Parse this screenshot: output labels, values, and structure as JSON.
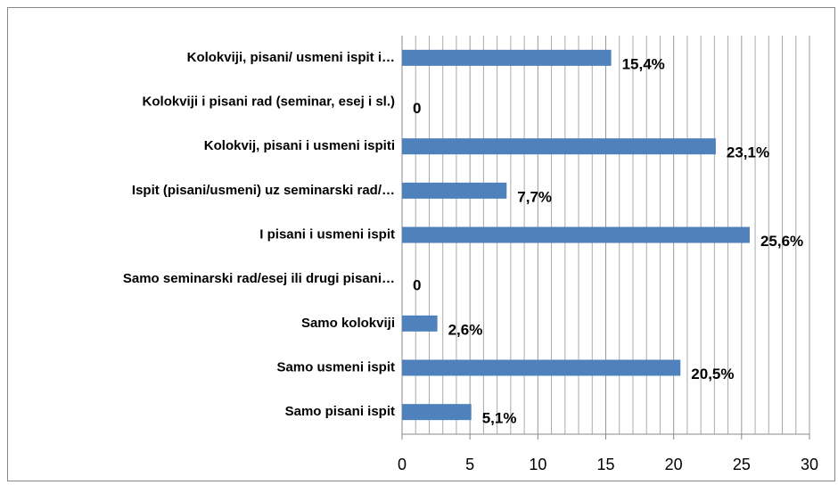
{
  "chart_data": {
    "type": "bar",
    "orientation": "horizontal",
    "categories": [
      "Kolokviji, pisani/ usmeni ispit i…",
      "Kolokviji i pisani rad (seminar, esej i sl.)",
      "Kolokvij, pisani i usmeni ispiti",
      "Ispit (pisani/usmeni) uz seminarski rad/…",
      "I pisani i usmeni ispit",
      "Samo seminarski rad/esej ili drugi pisani…",
      "Samo kolokviji",
      "Samo usmeni ispit",
      "Samo pisani ispit"
    ],
    "values": [
      15.4,
      0,
      23.1,
      7.7,
      25.6,
      0,
      2.6,
      20.5,
      5.1
    ],
    "value_labels": [
      "15,4%",
      "0",
      "23,1%",
      "7,7%",
      "25,6%",
      "0",
      "2,6%",
      "20,5%",
      "5,1%"
    ],
    "color": "#4f81bd",
    "xlim": [
      0,
      30
    ],
    "xticks": [
      0,
      5,
      10,
      15,
      20,
      25,
      30
    ],
    "minor_xticks": [
      1,
      2,
      3,
      4,
      6,
      7,
      8,
      9,
      11,
      12,
      13,
      14,
      16,
      17,
      18,
      19,
      21,
      22,
      23,
      24,
      26,
      27,
      28,
      29
    ],
    "grid": true
  }
}
